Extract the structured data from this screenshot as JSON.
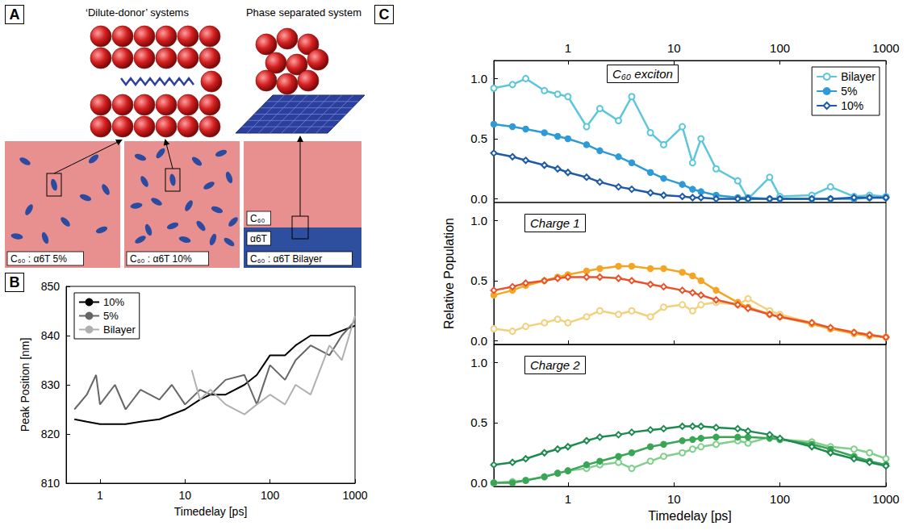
{
  "diagram": {
    "panel": "A",
    "headings": [
      "‘Dilute-donor’ systems",
      "Phase separated system"
    ],
    "boxes": [
      {
        "label": "C₆₀ : α6T 5%"
      },
      {
        "label": "C₆₀ : α6T 10%"
      },
      {
        "label": "C₆₀ : α6T Bilayer",
        "layers": [
          "C₆₀",
          "α6T"
        ]
      }
    ]
  },
  "chart_data": [
    {
      "panel": "B",
      "type": "line",
      "x_label": "Timedelay [ps]",
      "y_label": "Peak Position [nm]",
      "log": "x",
      "grid": false,
      "xlim": [
        0.4,
        1000
      ],
      "xticks": [
        1,
        10,
        100,
        1000
      ],
      "ylim": [
        810,
        850
      ],
      "yticks": [
        810,
        820,
        830,
        840,
        850
      ],
      "legend": "upper left",
      "series": [
        {
          "name": "10%",
          "color": "#000000",
          "marker": "none",
          "line_style": "solid",
          "x": [
            0.5,
            0.7,
            1,
            2,
            3,
            5,
            10,
            15,
            20,
            30,
            50,
            70,
            100,
            150,
            200,
            300,
            500,
            700,
            1000
          ],
          "values": [
            823,
            822.5,
            822,
            822,
            822.5,
            823,
            825,
            827,
            828,
            828,
            830,
            832,
            836,
            836,
            838,
            840,
            840,
            841,
            842
          ]
        },
        {
          "name": "5%",
          "color": "#666666",
          "marker": "none",
          "line_style": "solid",
          "x": [
            0.5,
            0.7,
            0.9,
            1,
            1.5,
            2,
            3,
            5,
            7,
            10,
            15,
            20,
            30,
            50,
            70,
            100,
            150,
            200,
            300,
            500,
            700,
            1000
          ],
          "values": [
            825,
            828,
            832,
            826,
            830,
            825,
            829,
            827,
            830,
            826,
            829,
            828,
            831,
            832,
            826,
            834,
            831,
            835,
            838,
            836,
            840,
            843
          ]
        },
        {
          "name": "Bilayer",
          "color": "#b0b0b0",
          "marker": "none",
          "line_style": "solid",
          "x": [
            12,
            15,
            20,
            30,
            50,
            70,
            100,
            150,
            200,
            300,
            500,
            700,
            1000
          ],
          "values": [
            833,
            827,
            829,
            826,
            824,
            826,
            828,
            826,
            830,
            828,
            838,
            835,
            844
          ]
        }
      ]
    },
    {
      "panel": "C",
      "type": "line",
      "title": "C₆₀ exciton",
      "log": "x",
      "grid": false,
      "x": [
        0.2,
        0.3,
        0.4,
        0.6,
        0.8,
        1,
        1.5,
        2,
        3,
        4,
        6,
        8,
        12,
        15,
        18,
        25,
        40,
        50,
        80,
        100,
        200,
        300,
        500,
        700,
        1000
      ],
      "xlim": [
        0.2,
        1000
      ],
      "xticks": [
        1,
        10,
        100,
        1000
      ],
      "ylim": [
        -0.03,
        1.15
      ],
      "yticks": [
        {
          "value": 0,
          "label": "0.0"
        },
        {
          "value": 0.5,
          "label": "0.5"
        },
        {
          "value": 1,
          "label": "1.0"
        }
      ],
      "legend": "upper right",
      "series": [
        {
          "name": "Bilayer",
          "color": "#5cc6dc",
          "marker": "circle-open",
          "line_style": "solid",
          "values": [
            0.92,
            0.95,
            1.0,
            0.9,
            0.87,
            0.85,
            0.6,
            0.75,
            0.65,
            0.85,
            0.55,
            0.45,
            0.6,
            0.3,
            0.5,
            0.25,
            0.15,
            0.0,
            0.18,
            0.02,
            0.03,
            0.1,
            0.02,
            0.03,
            0.02
          ]
        },
        {
          "name": "5%",
          "color": "#2e9ad6",
          "marker": "circle",
          "line_style": "solid",
          "values": [
            0.62,
            0.6,
            0.58,
            0.55,
            0.52,
            0.5,
            0.45,
            0.4,
            0.35,
            0.3,
            0.22,
            0.17,
            0.12,
            0.08,
            0.06,
            0.03,
            0.01,
            0.01,
            0.0,
            0.0,
            0.0,
            0.0,
            0.0,
            0.01,
            0.01
          ]
        },
        {
          "name": "10%",
          "color": "#1f5aa6",
          "marker": "diamond-open",
          "line_style": "solid",
          "values": [
            0.38,
            0.35,
            0.32,
            0.28,
            0.25,
            0.22,
            0.18,
            0.14,
            0.1,
            0.08,
            0.05,
            0.03,
            0.02,
            0.01,
            0.01,
            0.0,
            0.0,
            0.0,
            0.0,
            0.0,
            0.0,
            0.0,
            0.01,
            0.01,
            0.01
          ]
        }
      ]
    },
    {
      "type": "line",
      "title": "Charge 1",
      "y_label": "Relative Population",
      "log": "x",
      "grid": false,
      "tick_labels": "y",
      "x": [
        0.2,
        0.3,
        0.4,
        0.6,
        0.8,
        1,
        1.5,
        2,
        3,
        4,
        6,
        8,
        12,
        15,
        18,
        25,
        40,
        50,
        80,
        100,
        200,
        300,
        500,
        700,
        1000
      ],
      "xlim": [
        0.2,
        1000
      ],
      "xticks": [
        1,
        10,
        100,
        1000
      ],
      "ylim": [
        -0.03,
        1.15
      ],
      "yticks": [
        {
          "value": 0,
          "label": "0.0"
        },
        {
          "value": 0.5,
          "label": "0.5"
        },
        {
          "value": 1,
          "label": "1.0"
        }
      ],
      "series": [
        {
          "name": "Bilayer",
          "color": "#f3d07c",
          "marker": "circle-open",
          "line_style": "solid",
          "values": [
            0.1,
            0.08,
            0.12,
            0.15,
            0.18,
            0.15,
            0.2,
            0.25,
            0.22,
            0.25,
            0.2,
            0.28,
            0.3,
            0.25,
            0.3,
            0.32,
            0.3,
            0.35,
            0.25,
            0.22,
            0.15,
            0.1,
            0.07,
            0.05,
            0.03
          ]
        },
        {
          "name": "5%",
          "color": "#f5a524",
          "marker": "circle",
          "line_style": "solid",
          "values": [
            0.38,
            0.42,
            0.46,
            0.5,
            0.53,
            0.55,
            0.58,
            0.6,
            0.62,
            0.62,
            0.6,
            0.6,
            0.57,
            0.54,
            0.5,
            0.42,
            0.32,
            0.28,
            0.22,
            0.2,
            0.14,
            0.1,
            0.06,
            0.04,
            0.03
          ]
        },
        {
          "name": "10%",
          "color": "#e8532b",
          "marker": "diamond-open",
          "line_style": "solid",
          "values": [
            0.42,
            0.45,
            0.48,
            0.5,
            0.52,
            0.53,
            0.53,
            0.53,
            0.52,
            0.5,
            0.47,
            0.45,
            0.42,
            0.4,
            0.38,
            0.34,
            0.3,
            0.27,
            0.22,
            0.2,
            0.15,
            0.11,
            0.07,
            0.05,
            0.03
          ]
        }
      ]
    },
    {
      "type": "line",
      "title": "Charge 2",
      "x_label": "Timedelay [ps]",
      "log": "x",
      "grid": false,
      "x": [
        0.2,
        0.3,
        0.4,
        0.6,
        0.8,
        1,
        1.5,
        2,
        3,
        4,
        6,
        8,
        12,
        15,
        18,
        25,
        40,
        50,
        80,
        100,
        200,
        300,
        500,
        700,
        1000
      ],
      "xlim": [
        0.2,
        1000
      ],
      "xticks": [
        1,
        10,
        100,
        1000
      ],
      "ylim": [
        -0.03,
        1.15
      ],
      "yticks": [
        {
          "value": 0,
          "label": "0.0"
        },
        {
          "value": 0.5,
          "label": "0.5"
        },
        {
          "value": 1,
          "label": "1.0"
        }
      ],
      "series": [
        {
          "name": "Bilayer",
          "color": "#80cf8c",
          "marker": "circle-open",
          "line_style": "solid",
          "values": [
            0.0,
            0.01,
            0.02,
            0.05,
            0.08,
            0.1,
            0.12,
            0.15,
            0.17,
            0.12,
            0.18,
            0.22,
            0.25,
            0.28,
            0.3,
            0.32,
            0.35,
            0.33,
            0.38,
            0.36,
            0.34,
            0.3,
            0.28,
            0.25,
            0.2
          ]
        },
        {
          "name": "5%",
          "color": "#3aa655",
          "marker": "circle",
          "line_style": "solid",
          "values": [
            0.0,
            0.0,
            0.02,
            0.05,
            0.08,
            0.1,
            0.15,
            0.18,
            0.22,
            0.25,
            0.3,
            0.32,
            0.35,
            0.36,
            0.37,
            0.38,
            0.38,
            0.38,
            0.37,
            0.36,
            0.32,
            0.28,
            0.22,
            0.18,
            0.15
          ]
        },
        {
          "name": "10%",
          "color": "#1d8a4f",
          "marker": "diamond-open",
          "line_style": "solid",
          "values": [
            0.15,
            0.17,
            0.2,
            0.25,
            0.28,
            0.3,
            0.35,
            0.38,
            0.4,
            0.42,
            0.44,
            0.45,
            0.47,
            0.47,
            0.47,
            0.46,
            0.45,
            0.43,
            0.4,
            0.37,
            0.3,
            0.25,
            0.2,
            0.17,
            0.14
          ]
        }
      ]
    }
  ]
}
